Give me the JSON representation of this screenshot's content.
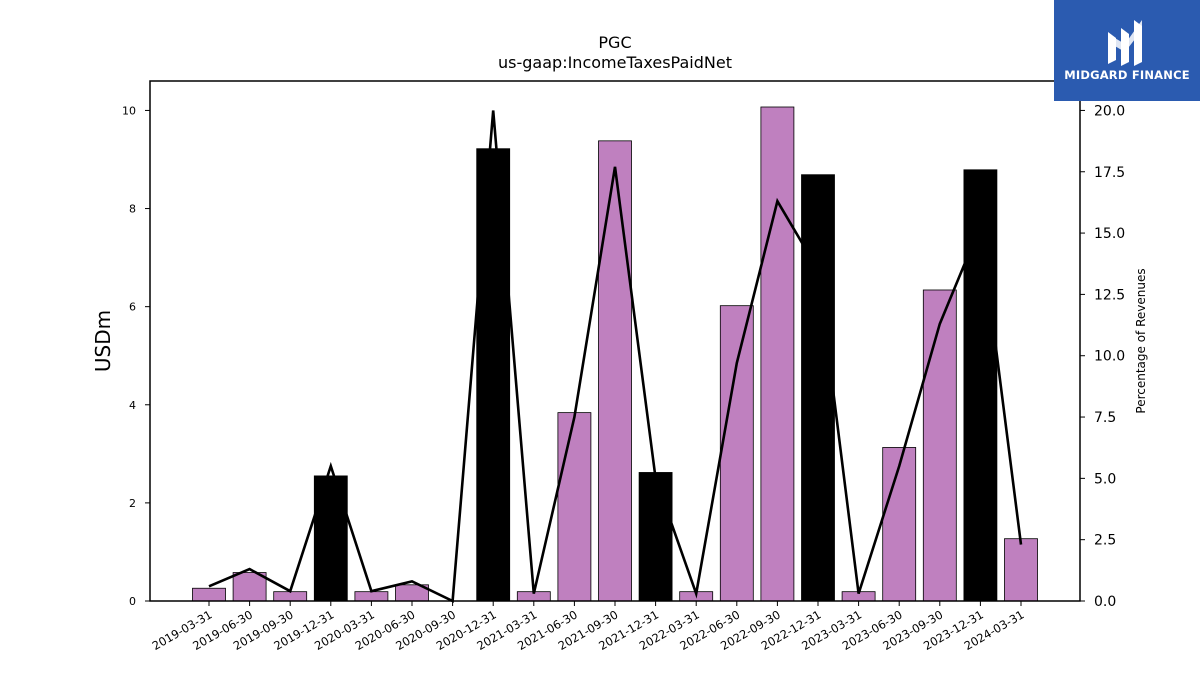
{
  "chart_data": {
    "type": "bar",
    "title": "PGC",
    "subtitle": "us-gaap:IncomeTaxesPaidNet",
    "ylabel": "USDm",
    "y2label": "Percentage of Revenues",
    "ylim": [
      0,
      10.6
    ],
    "y2lim": [
      0,
      21.2
    ],
    "yticks": [
      "0",
      "2",
      "4",
      "6",
      "8",
      "10"
    ],
    "y2ticks": [
      "0.0",
      "2.5",
      "5.0",
      "7.5",
      "10.0",
      "12.5",
      "15.0",
      "17.5",
      "20.0"
    ],
    "categories": [
      "2019-03-31",
      "2019-06-30",
      "2019-09-30",
      "2019-12-31",
      "2020-03-31",
      "2020-06-30",
      "2020-09-30",
      "2020-12-31",
      "2021-03-31",
      "2021-06-30",
      "2021-09-30",
      "2021-12-31",
      "2022-03-31",
      "2022-06-30",
      "2022-09-30",
      "2022-12-31",
      "2023-03-31",
      "2023-06-30",
      "2023-09-30",
      "2023-12-31",
      "2024-03-31"
    ],
    "values": [
      0.26,
      0.58,
      0.19,
      2.55,
      0.19,
      0.33,
      0.0,
      9.22,
      0.19,
      3.84,
      9.38,
      2.62,
      0.19,
      6.02,
      10.07,
      8.69,
      0.19,
      3.13,
      6.34,
      8.79,
      1.27
    ],
    "bar_colors": [
      "#bf80bf",
      "#bf80bf",
      "#bf80bf",
      "#000000",
      "#bf80bf",
      "#bf80bf",
      "#bf80bf",
      "#000000",
      "#bf80bf",
      "#bf80bf",
      "#bf80bf",
      "#000000",
      "#bf80bf",
      "#bf80bf",
      "#bf80bf",
      "#000000",
      "#bf80bf",
      "#bf80bf",
      "#bf80bf",
      "#000000",
      "#bf80bf"
    ],
    "line_values": [
      0.6,
      1.3,
      0.4,
      5.5,
      0.4,
      0.8,
      0.0,
      20.0,
      0.3,
      7.5,
      17.7,
      5.0,
      0.3,
      9.7,
      16.3,
      13.5,
      0.3,
      5.5,
      11.3,
      15.3,
      2.3
    ],
    "colors": {
      "bar": "#bf80bf",
      "bar_q4": "#000000",
      "line": "#000000"
    }
  },
  "logo": {
    "text": "MIDGARD FINANCE"
  }
}
